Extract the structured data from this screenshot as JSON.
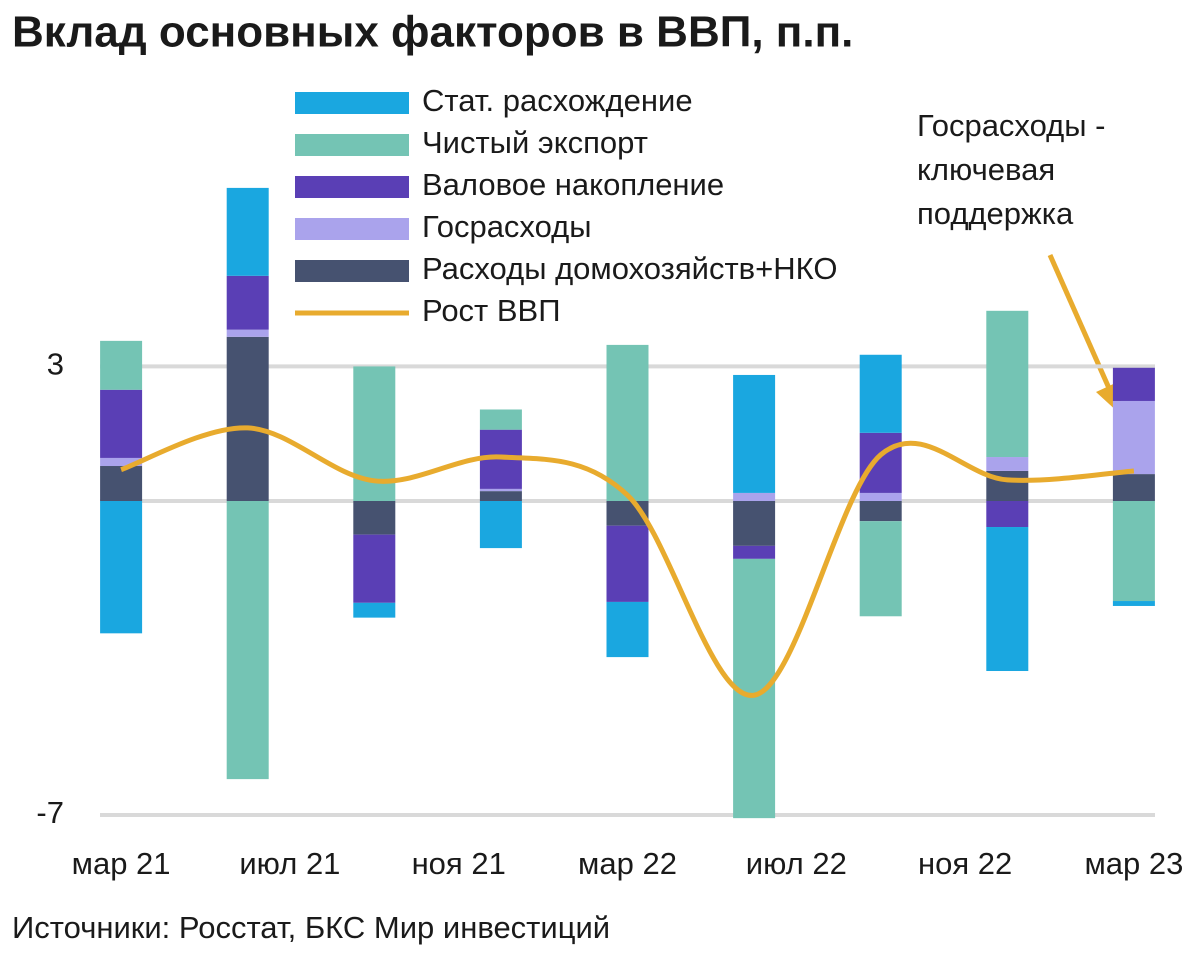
{
  "chart_data": {
    "type": "stacked-bar-line",
    "title": "Вклад основных факторов в ВВП, п.п.",
    "source": "Источники: Росстат, БКС Мир инвестиций",
    "annotation": [
      "Госрасходы -",
      "ключевая",
      "поддержка"
    ],
    "x": [
      0,
      3,
      6,
      9,
      12,
      15,
      18,
      21,
      24
    ],
    "xlim": [
      -0.5,
      24.5
    ],
    "xticks": [
      {
        "value": 0,
        "label": "мар 21"
      },
      {
        "value": 4,
        "label": "июл 21"
      },
      {
        "value": 8,
        "label": "ноя 21"
      },
      {
        "value": 12,
        "label": "мар 22"
      },
      {
        "value": 16,
        "label": "июл 22"
      },
      {
        "value": 20,
        "label": "ноя 22"
      },
      {
        "value": 24,
        "label": "мар 23"
      }
    ],
    "ylim": [
      -7,
      7
    ],
    "yticks": [
      -7,
      3
    ],
    "grid": true,
    "series": [
      {
        "name": "Стат. расхождение",
        "color": "#1aa7e0",
        "values": [
          -2.95,
          1.96,
          -0.33,
          -1.05,
          -1.23,
          2.63,
          1.74,
          -3.21,
          -0.11
        ]
      },
      {
        "name": "Чистый экспорт",
        "color": "#74c4b4",
        "values": [
          1.09,
          -6.2,
          3.0,
          0.45,
          3.48,
          -5.78,
          -2.12,
          3.26,
          -2.23
        ]
      },
      {
        "name": "Валовое накопление",
        "color": "#5a3fb5",
        "values": [
          1.52,
          1.2,
          -1.52,
          1.32,
          -1.7,
          -0.29,
          1.34,
          -0.58,
          0.74
        ]
      },
      {
        "name": "Госрасходы",
        "color": "#aaa3ec",
        "values": [
          0.18,
          0.16,
          0,
          0.05,
          0,
          0.18,
          0.18,
          0.31,
          1.63
        ]
      },
      {
        "name": "Расходы домохозяйств+НКО",
        "color": "#465270",
        "values": [
          0.78,
          3.66,
          -0.75,
          0.22,
          -0.55,
          -1.0,
          -0.45,
          0.67,
          0.6
        ]
      },
      {
        "name": "Рост ВВП",
        "color": "#e8ab2e",
        "type": "line",
        "values": [
          0.7,
          1.63,
          0.45,
          0.98,
          0.13,
          -4.33,
          1.03,
          0.47,
          0.67
        ]
      }
    ]
  }
}
